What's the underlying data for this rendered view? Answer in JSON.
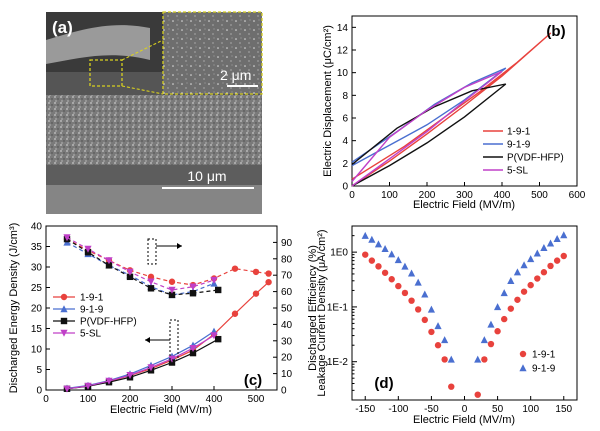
{
  "panel_labels": {
    "a": "(a)",
    "b": "(b)",
    "c": "(c)",
    "d": "(d)"
  },
  "sem": {
    "inset_scale": "2 μm",
    "main_scale": "10 μm"
  },
  "colors": {
    "red": "#e8423d",
    "blue": "#4a6fd0",
    "black": "#111111",
    "magenta": "#c040c8",
    "sem_box": "#d8d020"
  },
  "chart_data": [
    {
      "id": "b",
      "type": "line",
      "title": "",
      "xlabel": "Electric Field (MV/m)",
      "ylabel": "Electric Displacement (μC/cm²)",
      "xlim": [
        0,
        600
      ],
      "ylim": [
        0,
        15
      ],
      "xticks": [
        0,
        100,
        200,
        300,
        400,
        500,
        600
      ],
      "yticks": [
        0,
        2,
        4,
        6,
        8,
        10,
        12,
        14
      ],
      "legend_position": "center-right",
      "series": [
        {
          "name": "1-9-1",
          "color": "#e8423d",
          "up": [
            [
              0,
              0
            ],
            [
              100,
              2.2
            ],
            [
              200,
              4.6
            ],
            [
              300,
              7.1
            ],
            [
              400,
              9.7
            ],
            [
              530,
              13.5
            ]
          ],
          "down": [
            [
              530,
              13.5
            ],
            [
              440,
              10.9
            ],
            [
              340,
              8.3
            ],
            [
              240,
              5.9
            ],
            [
              140,
              3.5
            ],
            [
              0,
              0.6
            ]
          ]
        },
        {
          "name": "9-1-9",
          "color": "#4a6fd0",
          "up": [
            [
              0,
              1.8
            ],
            [
              100,
              3.6
            ],
            [
              200,
              5.4
            ],
            [
              300,
              7.6
            ],
            [
              410,
              10.4
            ]
          ],
          "down": [
            [
              410,
              10.4
            ],
            [
              320,
              9.1
            ],
            [
              220,
              7.2
            ],
            [
              120,
              4.8
            ],
            [
              0,
              2.1
            ]
          ]
        },
        {
          "name": "P(VDF-HFP)",
          "color": "#111111",
          "up": [
            [
              0,
              0
            ],
            [
              100,
              1.8
            ],
            [
              200,
              3.8
            ],
            [
              300,
              6.1
            ],
            [
              410,
              9
            ]
          ],
          "down": [
            [
              410,
              9
            ],
            [
              320,
              8.4
            ],
            [
              220,
              7
            ],
            [
              120,
              5.1
            ],
            [
              0,
              1.9
            ]
          ]
        },
        {
          "name": "5-SL",
          "color": "#c040c8",
          "up": [
            [
              0,
              0
            ],
            [
              100,
              2.4
            ],
            [
              200,
              4.8
            ],
            [
              300,
              7.5
            ],
            [
              400,
              10.1
            ]
          ],
          "down": [
            [
              400,
              10.1
            ],
            [
              300,
              8.7
            ],
            [
              200,
              6.7
            ],
            [
              100,
              4.3
            ],
            [
              0,
              0.4
            ]
          ]
        }
      ]
    },
    {
      "id": "c",
      "type": "line",
      "xlabel": "Electric Field (MV/m)",
      "ylabel": "Discharged Energy Density (J/cm³)",
      "ylabel_right": "Discharged Efficiency (%)",
      "xlim": [
        0,
        550
      ],
      "ylim": [
        0,
        40
      ],
      "ylim_right": [
        0,
        100
      ],
      "xticks": [
        0,
        100,
        200,
        300,
        400,
        500
      ],
      "yticks": [
        0,
        5,
        10,
        15,
        20,
        25,
        30,
        35,
        40
      ],
      "yticks_right": [
        0,
        10,
        20,
        30,
        40,
        50,
        60,
        70,
        80,
        90
      ],
      "legend_position": "center-left",
      "series": [
        {
          "name": "1-9-1",
          "color": "#e8423d",
          "marker": "circle",
          "energy": [
            [
              50,
              0.3
            ],
            [
              100,
              1.0
            ],
            [
              150,
              2.1
            ],
            [
              200,
              3.5
            ],
            [
              250,
              5.2
            ],
            [
              300,
              7.3
            ],
            [
              350,
              9.7
            ],
            [
              400,
              13.6
            ],
            [
              450,
              18.6
            ],
            [
              500,
              23.5
            ],
            [
              530,
              26.3
            ]
          ],
          "efficiency": [
            [
              50,
              92
            ],
            [
              100,
              85
            ],
            [
              150,
              79
            ],
            [
              200,
              73
            ],
            [
              250,
              69
            ],
            [
              300,
              66
            ],
            [
              350,
              64
            ],
            [
              400,
              68
            ],
            [
              450,
              74
            ],
            [
              500,
              72
            ],
            [
              530,
              71
            ]
          ]
        },
        {
          "name": "9-1-9",
          "color": "#4a6fd0",
          "marker": "triangle",
          "energy": [
            [
              50,
              0.4
            ],
            [
              100,
              1.1
            ],
            [
              150,
              2.3
            ],
            [
              200,
              3.9
            ],
            [
              250,
              6.0
            ],
            [
              300,
              8.2
            ],
            [
              350,
              10.9
            ],
            [
              400,
              14.3
            ]
          ],
          "efficiency": [
            [
              50,
              90
            ],
            [
              100,
              83
            ],
            [
              150,
              76
            ],
            [
              200,
              70
            ],
            [
              250,
              63
            ],
            [
              300,
              58
            ],
            [
              350,
              60
            ],
            [
              400,
              65
            ]
          ]
        },
        {
          "name": "P(VDF-HFP)",
          "color": "#111111",
          "marker": "square",
          "energy": [
            [
              50,
              0.3
            ],
            [
              100,
              0.9
            ],
            [
              150,
              1.9
            ],
            [
              200,
              3.1
            ],
            [
              250,
              4.8
            ],
            [
              300,
              6.7
            ],
            [
              350,
              9.0
            ],
            [
              410,
              12.4
            ]
          ],
          "efficiency": [
            [
              50,
              92
            ],
            [
              100,
              84
            ],
            [
              150,
              76
            ],
            [
              200,
              69
            ],
            [
              250,
              62
            ],
            [
              300,
              58
            ],
            [
              350,
              59
            ],
            [
              410,
              61
            ]
          ]
        },
        {
          "name": "5-SL",
          "color": "#c040c8",
          "marker": "triangle-down",
          "energy": [
            [
              50,
              0.3
            ],
            [
              100,
              1.0
            ],
            [
              150,
              2.2
            ],
            [
              200,
              3.6
            ],
            [
              250,
              5.5
            ],
            [
              300,
              7.6
            ],
            [
              350,
              10.2
            ],
            [
              400,
              13.3
            ]
          ],
          "efficiency": [
            [
              50,
              93
            ],
            [
              100,
              86
            ],
            [
              150,
              79
            ],
            [
              200,
              72
            ],
            [
              250,
              66
            ],
            [
              300,
              61
            ],
            [
              350,
              63
            ],
            [
              400,
              67
            ]
          ]
        }
      ]
    },
    {
      "id": "d",
      "type": "scatter",
      "xlabel": "Electric Field (MV/m)",
      "ylabel": "Leakage Current Density (μA/cm²)",
      "yscale": "log",
      "xlim": [
        -170,
        170
      ],
      "ylim": [
        0.002,
        3
      ],
      "xticks": [
        -150,
        -100,
        -50,
        0,
        50,
        100,
        150
      ],
      "ytick_labels": [
        "1E-2",
        "1E-1",
        "1E0"
      ],
      "legend_position": "bottom-right",
      "series": [
        {
          "name": "1-9-1",
          "color": "#e8423d",
          "marker": "circle",
          "x": [
            -150,
            -140,
            -130,
            -120,
            -110,
            -100,
            -90,
            -80,
            -70,
            -60,
            -50,
            -40,
            -30,
            -20,
            20,
            30,
            40,
            50,
            60,
            70,
            80,
            90,
            100,
            110,
            120,
            130,
            140,
            150
          ],
          "y": [
            0.9,
            0.7,
            0.55,
            0.42,
            0.32,
            0.24,
            0.18,
            0.13,
            0.09,
            0.058,
            0.035,
            0.02,
            0.011,
            0.0035,
            0.0025,
            0.011,
            0.021,
            0.036,
            0.06,
            0.093,
            0.135,
            0.19,
            0.25,
            0.33,
            0.43,
            0.56,
            0.7,
            0.85
          ]
        },
        {
          "name": "9-1-9",
          "color": "#4a6fd0",
          "marker": "triangle",
          "x": [
            -150,
            -140,
            -130,
            -120,
            -110,
            -100,
            -90,
            -80,
            -70,
            -60,
            -50,
            -40,
            -30,
            -20,
            20,
            30,
            40,
            50,
            60,
            70,
            80,
            90,
            100,
            110,
            120,
            130,
            140,
            150
          ],
          "y": [
            2.0,
            1.7,
            1.4,
            1.15,
            0.92,
            0.72,
            0.55,
            0.41,
            0.28,
            0.17,
            0.09,
            0.045,
            0.025,
            0.011,
            0.011,
            0.025,
            0.048,
            0.1,
            0.18,
            0.3,
            0.43,
            0.58,
            0.75,
            0.95,
            1.2,
            1.45,
            1.75,
            2.05
          ]
        }
      ]
    }
  ]
}
